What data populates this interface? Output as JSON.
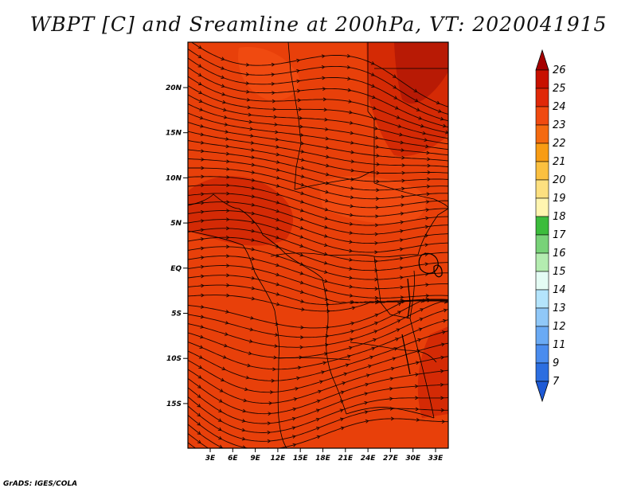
{
  "title": "WBPT [C] and Sreamline at 200hPa, VT: 2020041915",
  "credit": "GrADS: IGES/COLA",
  "map": {
    "lat_ticks": [
      "20N",
      "15N",
      "10N",
      "5N",
      "EQ",
      "5S",
      "10S",
      "15S"
    ],
    "lon_ticks": [
      "3E",
      "6E",
      "9E",
      "12E",
      "15E",
      "18E",
      "21E",
      "24E",
      "27E",
      "30E",
      "33E"
    ],
    "fill_colors": {
      "dominant": "#e8400a",
      "warmer": "#d42a05",
      "hottest": "#b81a05"
    }
  },
  "colorbar": {
    "levels": [
      "26",
      "25",
      "24",
      "23",
      "22",
      "21",
      "20",
      "19",
      "18",
      "17",
      "16",
      "15",
      "14",
      "13",
      "12",
      "11",
      "9",
      "7"
    ],
    "colors": [
      "#a50000",
      "#c81000",
      "#e02808",
      "#f04a10",
      "#f46a10",
      "#f89c14",
      "#fbc040",
      "#fde080",
      "#fff5b0",
      "#3cbc3c",
      "#78d278",
      "#b4ecb0",
      "#e4fcf4",
      "#b4e4fc",
      "#90c8f8",
      "#6aaaf4",
      "#4a8cee",
      "#2c6ee0",
      "#1e5ad6"
    ]
  }
}
